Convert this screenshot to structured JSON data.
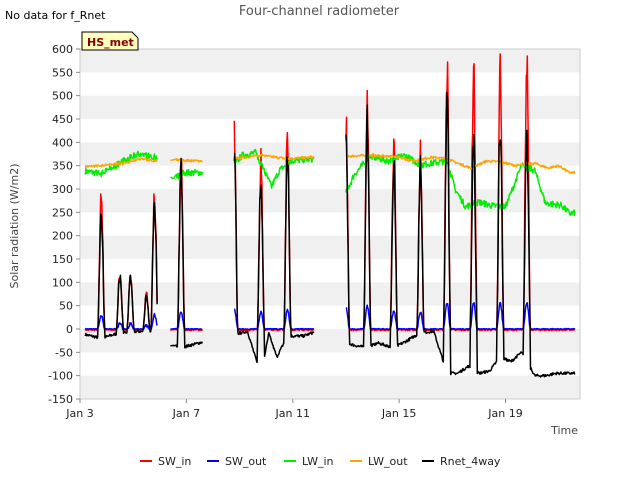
{
  "note": "No data for f_Rnet",
  "chart_data": {
    "type": "line",
    "title": "Four-channel radiometer",
    "xlabel": "Time",
    "ylabel": "Solar radiation (W/m2)",
    "ylim": [
      -150,
      600
    ],
    "yticks": [
      -150,
      -100,
      -50,
      0,
      50,
      100,
      150,
      200,
      250,
      300,
      350,
      400,
      450,
      500,
      550,
      600
    ],
    "xlim": [
      3,
      21.8
    ],
    "xticks": [
      {
        "day": 3,
        "label": "Jan 3"
      },
      {
        "day": 7,
        "label": "Jan 7"
      },
      {
        "day": 11,
        "label": "Jan 11"
      },
      {
        "day": 15,
        "label": "Jan 15"
      },
      {
        "day": 19,
        "label": "Jan 19"
      }
    ],
    "annotation": "HS_met",
    "grid": "horizontal bands",
    "legend_position": "bottom",
    "gap_days": [
      [
        5.9,
        6.4
      ],
      [
        7.6,
        8.8
      ],
      [
        11.8,
        13.0
      ]
    ],
    "night_segments": [
      [
        3.2,
        4.8
      ],
      [
        5.85,
        6.4
      ],
      [
        7.6,
        8.75
      ],
      [
        8.7,
        11.9
      ],
      [
        13.0,
        21.6
      ]
    ],
    "day_peaks": [
      {
        "day": 3.8,
        "sw_in": 290,
        "rnet": 240
      },
      {
        "day": 4.5,
        "sw_in": 120,
        "rnet": 115
      },
      {
        "day": 4.9,
        "sw_in": 110,
        "rnet": 110
      },
      {
        "day": 5.5,
        "sw_in": 75,
        "rnet": 70
      },
      {
        "day": 5.8,
        "sw_in": 300,
        "rnet": 275
      },
      {
        "day": 6.8,
        "sw_in": 355,
        "rnet": 340
      },
      {
        "day": 8.8,
        "sw_in": 420,
        "rnet": 380
      },
      {
        "day": 9.8,
        "sw_in": 360,
        "rnet": 330
      },
      {
        "day": 10.8,
        "sw_in": 415,
        "rnet": 380
      },
      {
        "day": 13.0,
        "sw_in": 445,
        "rnet": 400
      },
      {
        "day": 13.8,
        "sw_in": 485,
        "rnet": 440
      },
      {
        "day": 14.8,
        "sw_in": 395,
        "rnet": 360
      },
      {
        "day": 15.8,
        "sw_in": 370,
        "rnet": 345
      },
      {
        "day": 16.8,
        "sw_in": 565,
        "rnet": 480
      },
      {
        "day": 17.8,
        "sw_in": 560,
        "rnet": 400
      },
      {
        "day": 18.8,
        "sw_in": 555,
        "rnet": 450
      },
      {
        "day": 19.8,
        "sw_in": 575,
        "rnet": 420
      }
    ],
    "series": [
      {
        "name": "SW_in",
        "color": "#ff0000"
      },
      {
        "name": "SW_out",
        "color": "#0000ff"
      },
      {
        "name": "LW_in",
        "color": "#00ee00"
      },
      {
        "name": "LW_out",
        "color": "#ffa500"
      },
      {
        "name": "Rnet_4way",
        "color": "#000000"
      }
    ],
    "lw_in_knots": [
      [
        3.2,
        338
      ],
      [
        3.8,
        333
      ],
      [
        4.2,
        345
      ],
      [
        4.7,
        362
      ],
      [
        5.2,
        375
      ],
      [
        5.8,
        368
      ],
      [
        6.1,
        350
      ],
      [
        6.5,
        320
      ],
      [
        6.9,
        335
      ],
      [
        7.6,
        335
      ],
      [
        8.7,
        348
      ],
      [
        9.1,
        372
      ],
      [
        9.6,
        378
      ],
      [
        10.2,
        305
      ],
      [
        10.5,
        340
      ],
      [
        10.9,
        360
      ],
      [
        11.8,
        365
      ],
      [
        13.0,
        290
      ],
      [
        13.3,
        330
      ],
      [
        13.9,
        370
      ],
      [
        14.6,
        360
      ],
      [
        15.2,
        372
      ],
      [
        15.8,
        352
      ],
      [
        16.3,
        356
      ],
      [
        16.8,
        360
      ],
      [
        17.1,
        300
      ],
      [
        17.5,
        262
      ],
      [
        18.0,
        272
      ],
      [
        18.5,
        264
      ],
      [
        19.0,
        262
      ],
      [
        19.6,
        350
      ],
      [
        20.1,
        340
      ],
      [
        20.5,
        270
      ],
      [
        21.1,
        265
      ],
      [
        21.4,
        248
      ]
    ],
    "lw_out_knots": [
      [
        3.2,
        348
      ],
      [
        3.8,
        350
      ],
      [
        4.6,
        355
      ],
      [
        5.3,
        365
      ],
      [
        5.8,
        360
      ],
      [
        6.6,
        362
      ],
      [
        7.6,
        360
      ],
      [
        8.8,
        365
      ],
      [
        9.8,
        372
      ],
      [
        10.8,
        365
      ],
      [
        11.8,
        368
      ],
      [
        13.0,
        370
      ],
      [
        13.8,
        372
      ],
      [
        14.8,
        370
      ],
      [
        15.5,
        360
      ],
      [
        16.2,
        368
      ],
      [
        16.8,
        365
      ],
      [
        17.2,
        355
      ],
      [
        17.7,
        345
      ],
      [
        18.3,
        360
      ],
      [
        18.8,
        358
      ],
      [
        19.4,
        350
      ],
      [
        20.1,
        355
      ],
      [
        20.6,
        345
      ],
      [
        21.0,
        350
      ],
      [
        21.4,
        335
      ]
    ],
    "rnet_night_knots": [
      [
        3.2,
        -12
      ],
      [
        3.8,
        -20
      ],
      [
        4.5,
        -8
      ],
      [
        5.2,
        -5
      ],
      [
        5.8,
        -8
      ],
      [
        6.4,
        -35
      ],
      [
        6.8,
        -40
      ],
      [
        7.6,
        -28
      ],
      [
        9.3,
        -5
      ],
      [
        9.8,
        -100
      ],
      [
        10.1,
        -10
      ],
      [
        10.4,
        -60
      ],
      [
        10.8,
        -15
      ],
      [
        11.4,
        -15
      ],
      [
        11.9,
        -5
      ],
      [
        13.3,
        -35
      ],
      [
        13.8,
        -40
      ],
      [
        14.2,
        -30
      ],
      [
        14.8,
        -40
      ],
      [
        15.3,
        -25
      ],
      [
        15.8,
        -8
      ],
      [
        16.3,
        -5
      ],
      [
        16.8,
        -95
      ],
      [
        17.2,
        -95
      ],
      [
        17.6,
        -80
      ],
      [
        18.0,
        -95
      ],
      [
        18.4,
        -90
      ],
      [
        18.8,
        -60
      ],
      [
        19.2,
        -70
      ],
      [
        19.6,
        -50
      ],
      [
        20.1,
        -100
      ],
      [
        20.5,
        -100
      ],
      [
        20.9,
        -95
      ],
      [
        21.1,
        -95
      ]
    ]
  }
}
